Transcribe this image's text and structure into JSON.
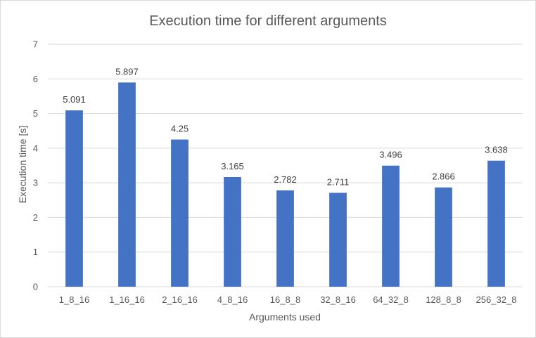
{
  "chart_data": {
    "type": "bar",
    "title": "Execution time for different arguments",
    "xlabel": "Arguments used",
    "ylabel": "Execution time [s]",
    "categories": [
      "1_8_16",
      "1_16_16",
      "2_16_16",
      "4_8_16",
      "16_8_8",
      "32_8_16",
      "64_32_8",
      "128_8_8",
      "256_32_8"
    ],
    "values": [
      5.091,
      5.897,
      4.25,
      3.165,
      2.782,
      2.711,
      3.496,
      2.866,
      3.638
    ],
    "data_labels": [
      "5.091",
      "5.897",
      "4.25",
      "3.165",
      "2.782",
      "2.711",
      "3.496",
      "2.866",
      "3.638"
    ],
    "ylim": [
      0,
      7
    ],
    "yticks": [
      "0",
      "1",
      "2",
      "3",
      "4",
      "5",
      "6",
      "7"
    ],
    "grid": true,
    "legend": "none",
    "bar_color": "#4472c4",
    "grid_color": "#d9d9d9"
  }
}
